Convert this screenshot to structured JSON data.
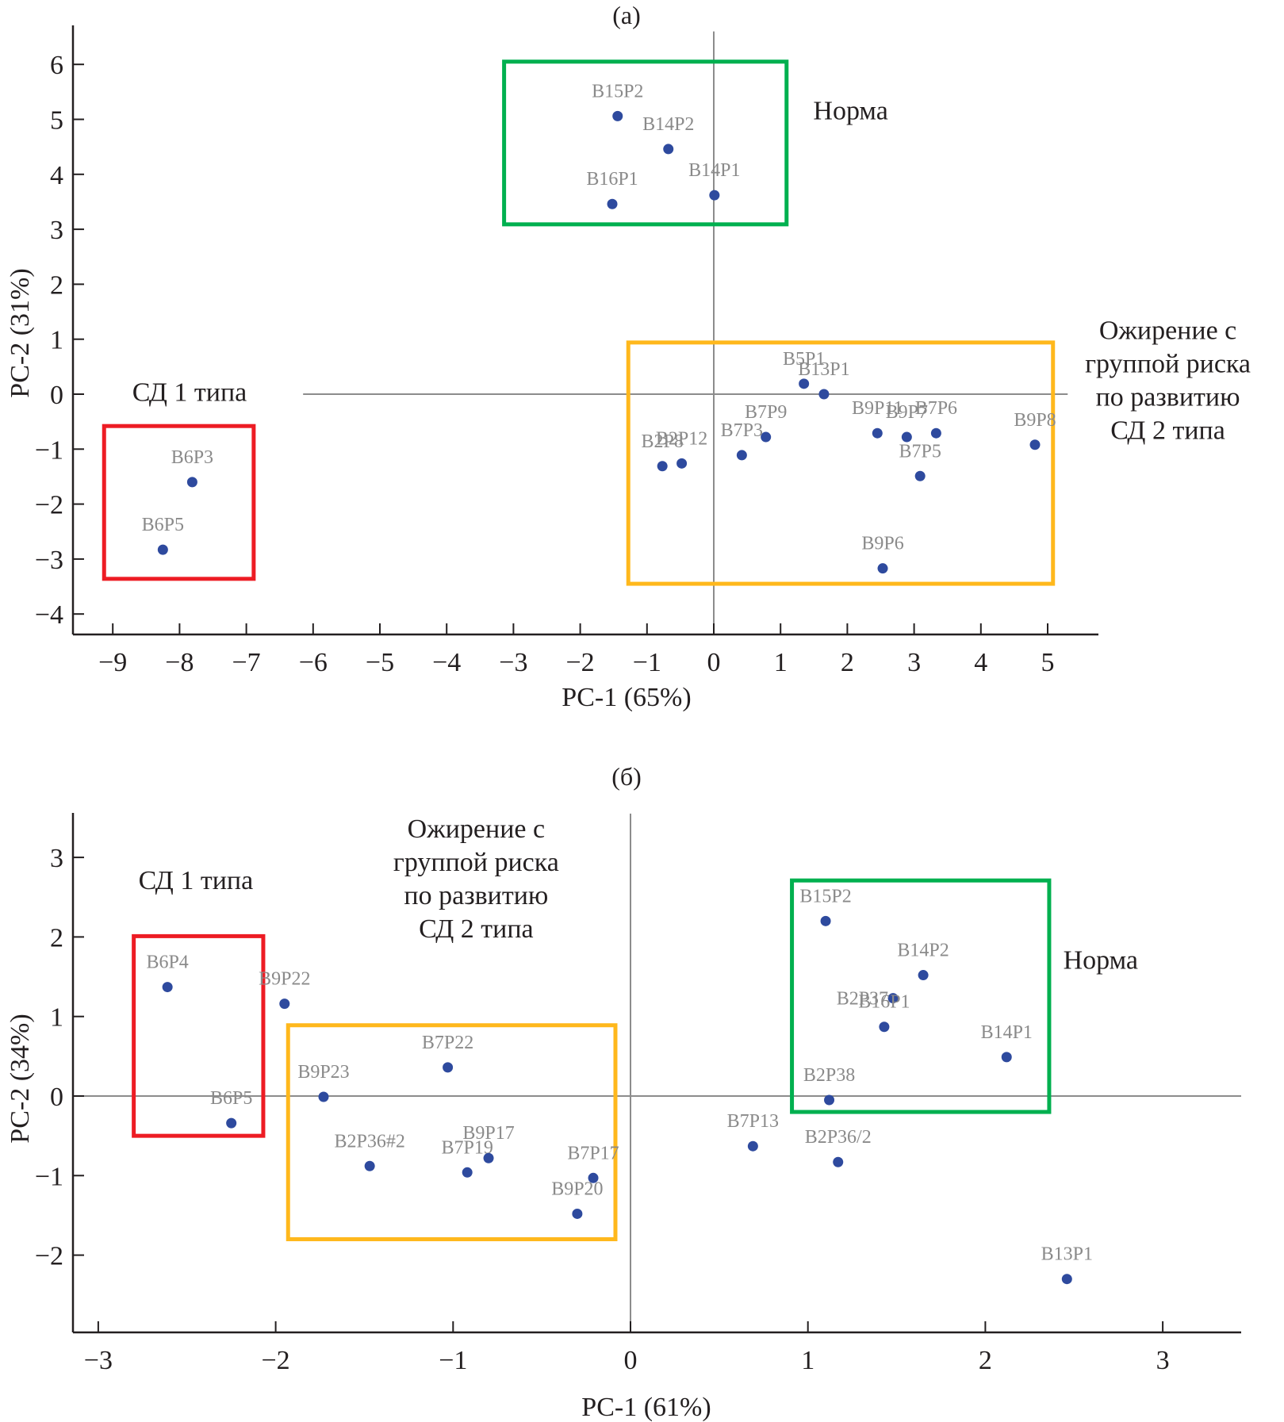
{
  "colors": {
    "point": "#2e4a9e",
    "point_label": "#8a8a8a",
    "axis": "#231f20",
    "zero_line": "#8c8c8c",
    "norm_box": "#00b04f",
    "t1d_box": "#ed1c24",
    "obesity_box": "#ffb81c"
  },
  "chart_data": [
    {
      "type": "scatter",
      "title": "(a)",
      "xlabel": "PC-1 (65%)",
      "ylabel": "PC-2 (31%)",
      "xlim": [
        -9.7,
        5.8
      ],
      "ylim": [
        -4.5,
        6.6
      ],
      "xticks": [
        -9,
        -8,
        -7,
        -6,
        -5,
        -4,
        -3,
        -2,
        -1,
        0,
        1,
        2,
        3,
        4,
        5
      ],
      "yticks": [
        -4,
        -3,
        -2,
        -1,
        0,
        1,
        2,
        3,
        4,
        5,
        6
      ],
      "xtick_labels": [
        "−9",
        "−8",
        "−7",
        "−6",
        "−5",
        "−4",
        "−3",
        "−2",
        "−1",
        "0",
        "1",
        "2",
        "3",
        "4",
        "5"
      ],
      "ytick_labels": [
        "−4",
        "−3",
        "−2",
        "−1",
        "0",
        "1",
        "2",
        "3",
        "4",
        "5",
        "6"
      ],
      "zero_lines": {
        "vertical_y_range": [
          -4.5,
          6.6
        ],
        "horizontal_x_range": [
          -6.15,
          5.3
        ]
      },
      "grid": false,
      "points": [
        {
          "label": "B15P2",
          "x": -1.44,
          "y": 5.06,
          "label_pos": "above"
        },
        {
          "label": "B14P2",
          "x": -0.68,
          "y": 4.46,
          "label_pos": "above"
        },
        {
          "label": "B16P1",
          "x": -1.52,
          "y": 3.46,
          "label_pos": "above"
        },
        {
          "label": "B14P1",
          "x": 0.01,
          "y": 3.62,
          "label_pos": "above"
        },
        {
          "label": "B6P3",
          "x": -7.81,
          "y": -1.6,
          "label_pos": "above"
        },
        {
          "label": "B6P5",
          "x": -8.25,
          "y": -2.83,
          "label_pos": "above"
        },
        {
          "label": "B5P1",
          "x": 1.35,
          "y": 0.19,
          "label_pos": "above"
        },
        {
          "label": "B13P1",
          "x": 1.65,
          "y": 0.0,
          "label_pos": "above"
        },
        {
          "label": "B7P9",
          "x": 0.78,
          "y": -0.78,
          "label_pos": "above"
        },
        {
          "label": "B7P3",
          "x": 0.42,
          "y": -1.11,
          "label_pos": "above"
        },
        {
          "label": "B2P12",
          "x": -0.48,
          "y": -1.26,
          "label_pos": "above"
        },
        {
          "label": "B2P8",
          "x": -0.77,
          "y": -1.31,
          "label_pos": "above"
        },
        {
          "label": "B9P11",
          "x": 2.45,
          "y": -0.71,
          "label_pos": "above"
        },
        {
          "label": "B9P7",
          "x": 2.89,
          "y": -0.78,
          "label_pos": "above"
        },
        {
          "label": "B7P6",
          "x": 3.33,
          "y": -0.71,
          "label_pos": "above"
        },
        {
          "label": "B7P5",
          "x": 3.09,
          "y": -1.49,
          "label_pos": "above"
        },
        {
          "label": "B9P8",
          "x": 4.81,
          "y": -0.92,
          "label_pos": "above"
        },
        {
          "label": "B9P6",
          "x": 2.53,
          "y": -3.17,
          "label_pos": "above"
        }
      ],
      "groups": [
        {
          "name": "Норма",
          "color_key": "norm_box",
          "box": {
            "x": [
              -3.14,
              1.09
            ],
            "y": [
              3.09,
              6.05
            ]
          },
          "label_lines": [
            "Норма"
          ],
          "label_anchor": {
            "x": 2.05,
            "y": 5.0
          }
        },
        {
          "name": "СД 1 типа",
          "color_key": "t1d_box",
          "box": {
            "x": [
              -9.13,
              -6.89
            ],
            "y": [
              -3.36,
              -0.58
            ]
          },
          "label_lines": [
            "СД 1 типа"
          ],
          "label_anchor": {
            "x": -7.85,
            "y": -0.12
          }
        },
        {
          "name": "Ожирение с группой риска по развитию СД 2 типа",
          "color_key": "obesity_box",
          "box": {
            "x": [
              -1.28,
              5.08
            ],
            "y": [
              -3.45,
              0.94
            ]
          },
          "label_lines": [
            "Ожирение с",
            "группой риска",
            "по развитию",
            "СД 2 типа"
          ],
          "label_anchor": {
            "x": 6.8,
            "y": 1.0
          }
        }
      ]
    },
    {
      "type": "scatter",
      "title": "(б)",
      "xlabel": "PC-1 (61%)",
      "ylabel": "PC-2 (34%)",
      "xlim": [
        -3.15,
        3.45
      ],
      "ylim": [
        -2.97,
        3.55
      ],
      "xticks": [
        -3,
        -2,
        -1,
        0,
        1,
        2,
        3
      ],
      "yticks": [
        -2,
        -1,
        0,
        1,
        2,
        3
      ],
      "xtick_labels": [
        "−3",
        "−2",
        "−1",
        "0",
        "1",
        "2",
        "3"
      ],
      "ytick_labels": [
        "−2",
        "−1",
        "0",
        "1",
        "2",
        "3"
      ],
      "zero_lines": {
        "vertical_y_range": [
          -2.97,
          3.55
        ],
        "horizontal_x_range": [
          -3.15,
          3.45
        ]
      },
      "grid": false,
      "points": [
        {
          "label": "B6P4",
          "x": -2.61,
          "y": 1.37,
          "label_pos": "above"
        },
        {
          "label": "B9P22",
          "x": -1.95,
          "y": 1.16,
          "label_pos": "above"
        },
        {
          "label": "B6P5",
          "x": -2.25,
          "y": -0.34,
          "label_pos": "above"
        },
        {
          "label": "B9P23",
          "x": -1.73,
          "y": -0.01,
          "label_pos": "above"
        },
        {
          "label": "B7P22",
          "x": -1.03,
          "y": 0.36,
          "label_pos": "above"
        },
        {
          "label": "B2P36#2",
          "x": -1.47,
          "y": -0.88,
          "label_pos": "above"
        },
        {
          "label": "B7P19",
          "x": -0.92,
          "y": -0.96,
          "label_pos": "above"
        },
        {
          "label": "B9P17",
          "x": -0.8,
          "y": -0.78,
          "label_pos": "above"
        },
        {
          "label": "B7P17",
          "x": -0.21,
          "y": -1.03,
          "label_pos": "above"
        },
        {
          "label": "B9P20",
          "x": -0.3,
          "y": -1.48,
          "label_pos": "above"
        },
        {
          "label": "B15P2",
          "x": 1.1,
          "y": 2.2,
          "label_pos": "above"
        },
        {
          "label": "B14P2",
          "x": 1.65,
          "y": 1.52,
          "label_pos": "above"
        },
        {
          "label": "B2P37",
          "x": 1.48,
          "y": 1.23,
          "label_pos": "left"
        },
        {
          "label": "B16P1",
          "x": 1.43,
          "y": 0.87,
          "label_pos": "above"
        },
        {
          "label": "B14P1",
          "x": 2.12,
          "y": 0.49,
          "label_pos": "above"
        },
        {
          "label": "B2P38",
          "x": 1.12,
          "y": -0.05,
          "label_pos": "above"
        },
        {
          "label": "B7P13",
          "x": 0.69,
          "y": -0.63,
          "label_pos": "above"
        },
        {
          "label": "B2P36/2",
          "x": 1.17,
          "y": -0.83,
          "label_pos": "above"
        },
        {
          "label": "B13P1",
          "x": 2.46,
          "y": -2.3,
          "label_pos": "above"
        }
      ],
      "groups": [
        {
          "name": "СД 1 типа",
          "color_key": "t1d_box",
          "box": {
            "x": [
              -2.8,
              -2.07
            ],
            "y": [
              -0.5,
              2.01
            ]
          },
          "label_lines": [
            "СД 1 типа"
          ],
          "label_anchor": {
            "x": -2.45,
            "y": 2.6
          }
        },
        {
          "name": "Ожирение с группой риска по развитию СД 2 типа",
          "color_key": "obesity_box",
          "box": {
            "x": [
              -1.93,
              -0.085
            ],
            "y": [
              -1.8,
              0.89
            ]
          },
          "label_lines": [
            "Ожирение с",
            "группой риска",
            "по развитию",
            "СД 2 типа"
          ],
          "label_anchor": {
            "x": -0.87,
            "y": 3.25
          }
        },
        {
          "name": "Норма",
          "color_key": "norm_box",
          "box": {
            "x": [
              0.91,
              2.36
            ],
            "y": [
              -0.2,
              2.71
            ]
          },
          "label_lines": [
            "Норма"
          ],
          "label_anchor": {
            "x": 2.65,
            "y": 1.6
          }
        }
      ]
    }
  ]
}
